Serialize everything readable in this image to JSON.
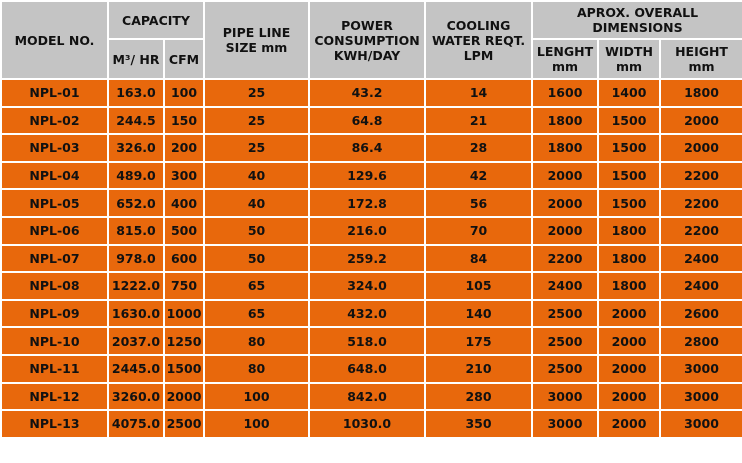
{
  "headers": {
    "model": "MODEL NO.",
    "capacity": "CAPACITY",
    "capacity_m3": "M³/ HR",
    "capacity_cfm": "CFM",
    "pipe": "PIPE LINE SIZE mm",
    "power": "POWER CONSUMPTION KWH/DAY",
    "cooling": "COOLING WATER REQT. LPM",
    "dims": "APROX. OVERALL DIMENSIONS",
    "length": "LENGHT mm",
    "width": "WIDTH mm",
    "height": "HEIGHT mm"
  },
  "rows": [
    {
      "model": "NPL-01",
      "m3": "163.0",
      "cfm": "100",
      "pipe": "25",
      "power": "43.2",
      "cooling": "14",
      "length": "1600",
      "width": "1400",
      "height": "1800"
    },
    {
      "model": "NPL-02",
      "m3": "244.5",
      "cfm": "150",
      "pipe": "25",
      "power": "64.8",
      "cooling": "21",
      "length": "1800",
      "width": "1500",
      "height": "2000"
    },
    {
      "model": "NPL-03",
      "m3": "326.0",
      "cfm": "200",
      "pipe": "25",
      "power": "86.4",
      "cooling": "28",
      "length": "1800",
      "width": "1500",
      "height": "2000"
    },
    {
      "model": "NPL-04",
      "m3": "489.0",
      "cfm": "300",
      "pipe": "40",
      "power": "129.6",
      "cooling": "42",
      "length": "2000",
      "width": "1500",
      "height": "2200"
    },
    {
      "model": "NPL-05",
      "m3": "652.0",
      "cfm": "400",
      "pipe": "40",
      "power": "172.8",
      "cooling": "56",
      "length": "2000",
      "width": "1500",
      "height": "2200"
    },
    {
      "model": "NPL-06",
      "m3": "815.0",
      "cfm": "500",
      "pipe": "50",
      "power": "216.0",
      "cooling": "70",
      "length": "2000",
      "width": "1800",
      "height": "2200"
    },
    {
      "model": "NPL-07",
      "m3": "978.0",
      "cfm": "600",
      "pipe": "50",
      "power": "259.2",
      "cooling": "84",
      "length": "2200",
      "width": "1800",
      "height": "2400"
    },
    {
      "model": "NPL-08",
      "m3": "1222.0",
      "cfm": "750",
      "pipe": "65",
      "power": "324.0",
      "cooling": "105",
      "length": "2400",
      "width": "1800",
      "height": "2400"
    },
    {
      "model": "NPL-09",
      "m3": "1630.0",
      "cfm": "1000",
      "pipe": "65",
      "power": "432.0",
      "cooling": "140",
      "length": "2500",
      "width": "2000",
      "height": "2600"
    },
    {
      "model": "NPL-10",
      "m3": "2037.0",
      "cfm": "1250",
      "pipe": "80",
      "power": "518.0",
      "cooling": "175",
      "length": "2500",
      "width": "2000",
      "height": "2800"
    },
    {
      "model": "NPL-11",
      "m3": "2445.0",
      "cfm": "1500",
      "pipe": "80",
      "power": "648.0",
      "cooling": "210",
      "length": "2500",
      "width": "2000",
      "height": "3000"
    },
    {
      "model": "NPL-12",
      "m3": "3260.0",
      "cfm": "2000",
      "pipe": "100",
      "power": "842.0",
      "cooling": "280",
      "length": "3000",
      "width": "2000",
      "height": "3000"
    },
    {
      "model": "NPL-13",
      "m3": "4075.0",
      "cfm": "2500",
      "pipe": "100",
      "power": "1030.0",
      "cooling": "350",
      "length": "3000",
      "width": "2000",
      "height": "3000"
    }
  ]
}
